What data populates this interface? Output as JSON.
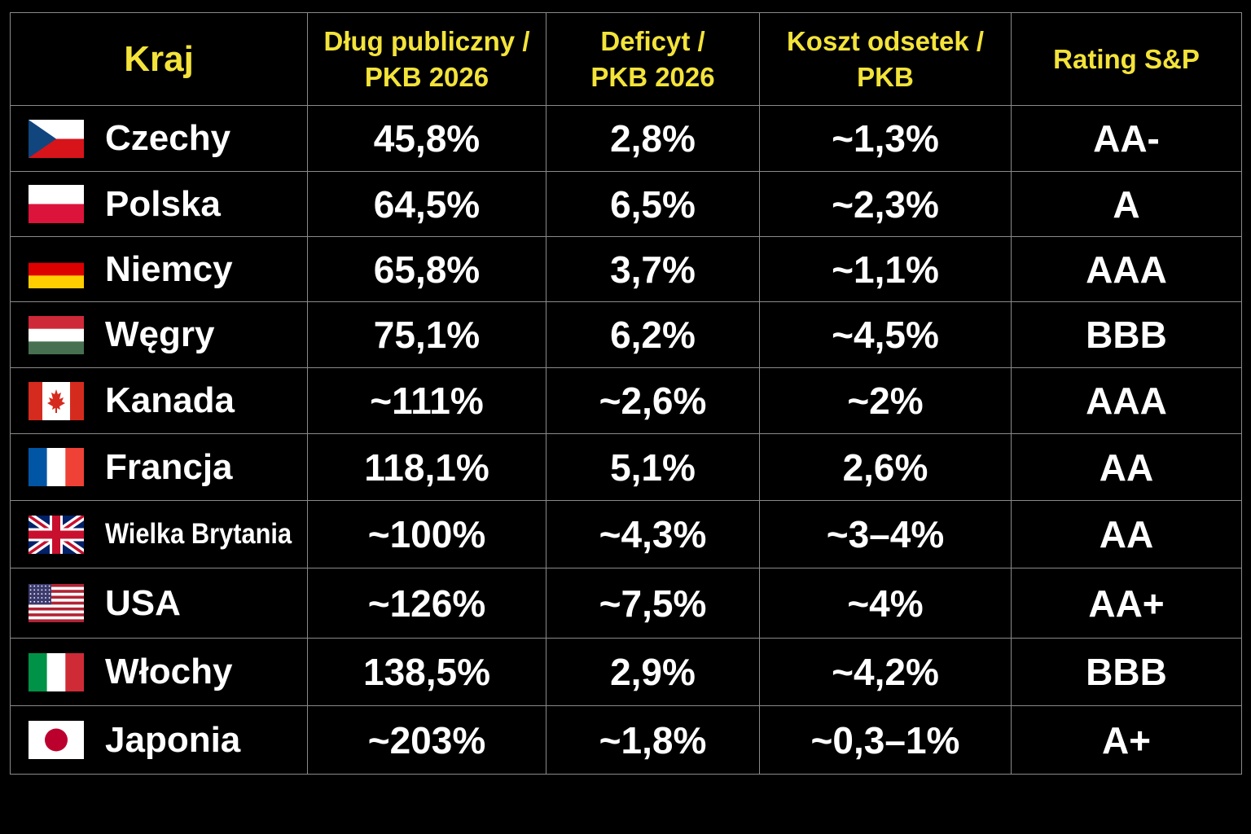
{
  "colors": {
    "background": "#000000",
    "header_text": "#f3e33a",
    "cell_text": "#ffffff",
    "grid": "#8a8a8a"
  },
  "header": {
    "country": "Kraj",
    "debt": [
      "Dług publiczny /",
      "PKB 2026"
    ],
    "deficit": [
      "Deficyt /",
      "PKB 2026"
    ],
    "interest": [
      "Koszt odsetek /",
      "PKB"
    ],
    "rating": "Rating S&P"
  },
  "chart_data": {
    "type": "table",
    "columns": [
      "Kraj",
      "Dług publiczny / PKB 2026",
      "Deficyt / PKB 2026",
      "Koszt odsetek / PKB",
      "Rating S&P"
    ],
    "rows": [
      {
        "country": "Czechy",
        "flag": "czech-flag-icon",
        "debt": "45,8%",
        "deficit": "2,8%",
        "interest": "~1,3%",
        "rating": "AA-"
      },
      {
        "country": "Polska",
        "flag": "poland-flag-icon",
        "debt": "64,5%",
        "deficit": "6,5%",
        "interest": "~2,3%",
        "rating": "A"
      },
      {
        "country": "Niemcy",
        "flag": "germany-flag-icon",
        "debt": "65,8%",
        "deficit": "3,7%",
        "interest": "~1,1%",
        "rating": "AAA"
      },
      {
        "country": "Węgry",
        "flag": "hungary-flag-icon",
        "debt": "75,1%",
        "deficit": "6,2%",
        "interest": "~4,5%",
        "rating": "BBB"
      },
      {
        "country": "Kanada",
        "flag": "canada-flag-icon",
        "debt": "~111%",
        "deficit": "~2,6%",
        "interest": "~2%",
        "rating": "AAA"
      },
      {
        "country": "Francja",
        "flag": "france-flag-icon",
        "debt": "118,1%",
        "deficit": "5,1%",
        "interest": "2,6%",
        "rating": "AA"
      },
      {
        "country": "Wielka Brytania",
        "flag": "uk-flag-icon",
        "debt": "~100%",
        "deficit": "~4,3%",
        "interest": "~3–4%",
        "rating": "AA"
      },
      {
        "country": "USA",
        "flag": "usa-flag-icon",
        "debt": "~126%",
        "deficit": "~7,5%",
        "interest": "~4%",
        "rating": "AA+"
      },
      {
        "country": "Włochy",
        "flag": "italy-flag-icon",
        "debt": "138,5%",
        "deficit": "2,9%",
        "interest": "~4,2%",
        "rating": "BBB"
      },
      {
        "country": "Japonia",
        "flag": "japan-flag-icon",
        "debt": "~203%",
        "deficit": "~1,8%",
        "interest": "~0,3–1%",
        "rating": "A+"
      }
    ]
  }
}
